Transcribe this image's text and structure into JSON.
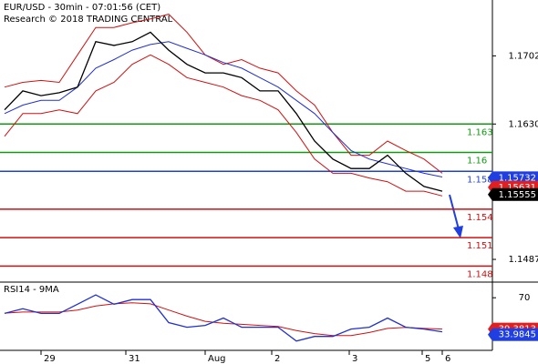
{
  "chart_data": [
    {
      "type": "line",
      "title": "EUR/USD - 30min - 07:01:56 (CET)",
      "subtitle": "Research © 2018 TRADING CENTRAL",
      "x": [
        0,
        1,
        2,
        3,
        4,
        5,
        6,
        7,
        8,
        9,
        10,
        11,
        12,
        13,
        14,
        15,
        16,
        17,
        18,
        19,
        20,
        21,
        22,
        23,
        24
      ],
      "xlim": [
        -0.1,
        26.75
      ],
      "ylim": [
        1.1463,
        1.1761
      ],
      "yticks": [
        1.1702,
        {
          "value": 1.163,
          "label": "1.1630"
        },
        1.1487
      ],
      "series": [
        {
          "color": "#d01010",
          "values": [
            1.1669,
            1.1674,
            1.1676,
            1.1674,
            1.1703,
            1.1732,
            1.1732,
            1.1737,
            1.1741,
            1.1746,
            1.1727,
            1.1703,
            1.1693,
            1.1698,
            1.1689,
            1.1684,
            1.1665,
            1.165,
            1.1621,
            1.1597,
            1.1597,
            1.1612,
            1.1602,
            1.1593,
            1.1578
          ]
        },
        {
          "color": "#d01010",
          "values": [
            1.1617,
            1.1641,
            1.1641,
            1.1645,
            1.1641,
            1.1665,
            1.1674,
            1.1693,
            1.1703,
            1.1693,
            1.1679,
            1.1674,
            1.1669,
            1.166,
            1.1655,
            1.1645,
            1.1621,
            1.1593,
            1.1578,
            1.1578,
            1.1573,
            1.1569,
            1.1559,
            1.1559,
            1.1554
          ]
        },
        {
          "color": "#2030d0",
          "values": [
            1.1641,
            1.165,
            1.1655,
            1.1655,
            1.1669,
            1.1689,
            1.1698,
            1.1708,
            1.1714,
            1.1717,
            1.171,
            1.1703,
            1.1695,
            1.1689,
            1.1679,
            1.1669,
            1.1655,
            1.1641,
            1.1621,
            1.1602,
            1.1593,
            1.1588,
            1.1583,
            1.1578,
            1.1574
          ]
        },
        {
          "color": "#000000",
          "values": [
            1.1645,
            1.1665,
            1.166,
            1.1663,
            1.1669,
            1.1717,
            1.1713,
            1.1717,
            1.1727,
            1.1708,
            1.1693,
            1.1684,
            1.1684,
            1.1679,
            1.1665,
            1.1665,
            1.1641,
            1.1612,
            1.1593,
            1.1583,
            1.1583,
            1.1597,
            1.1578,
            1.1564,
            1.1559
          ]
        }
      ],
      "levels": [
        {
          "value": 1.163,
          "color": "#119911"
        },
        {
          "value": 1.16,
          "color": "#119911"
        },
        {
          "value": 1.158,
          "color": "#1f3fe0"
        },
        {
          "value": 1.154,
          "color": "#d01010"
        },
        {
          "value": 1.151,
          "color": "#d01010"
        },
        {
          "value": 1.148,
          "color": "#d01010"
        }
      ],
      "price_labels": [
        {
          "value": 1.15732,
          "color": "#1f3fe0"
        },
        {
          "value": 1.15631,
          "color": "#e02020"
        },
        {
          "value": 1.15555,
          "color": "#000000"
        }
      ]
    },
    {
      "type": "line",
      "title": "RSI14 - 9MA",
      "x": [
        0,
        1,
        2,
        3,
        4,
        5,
        6,
        7,
        8,
        9,
        10,
        11,
        12,
        13,
        14,
        15,
        16,
        17,
        18,
        19,
        20,
        21,
        22,
        23,
        24
      ],
      "xlim": [
        -0.1,
        26.75
      ],
      "ylim": [
        18.6,
        83.5
      ],
      "yticks": [
        70
      ],
      "xticks": [
        {
          "value": 2,
          "label": "29"
        },
        {
          "value": 6.65,
          "label": "31"
        },
        {
          "value": 11,
          "label": "Aug"
        },
        {
          "value": 14.65,
          "label": "2"
        },
        {
          "value": 18.9,
          "label": "3"
        },
        {
          "value": 22.9,
          "label": "5"
        },
        {
          "value": 24,
          "label": "6"
        }
      ],
      "series": [
        {
          "color": "#d01010",
          "values": [
            55,
            56,
            56,
            56,
            58,
            62,
            64,
            65,
            64,
            58,
            52,
            47,
            45,
            44,
            43,
            42,
            38,
            35,
            33,
            33,
            36,
            40,
            41,
            40,
            39.4
          ]
        },
        {
          "color": "#2030d0",
          "values": [
            54.7,
            59.2,
            54.7,
            54.7,
            63.7,
            72.7,
            63.7,
            68.2,
            68.2,
            45.7,
            41.2,
            43,
            50.2,
            41.2,
            41.2,
            41.2,
            27.7,
            32.2,
            32.2,
            39.4,
            41.2,
            50.2,
            41.2,
            39.4,
            36.7
          ]
        }
      ],
      "price_labels": [
        {
          "value": 39.3813,
          "color": "#e02020"
        },
        {
          "value": 33.9845,
          "color": "#1f3fe0"
        }
      ]
    }
  ]
}
